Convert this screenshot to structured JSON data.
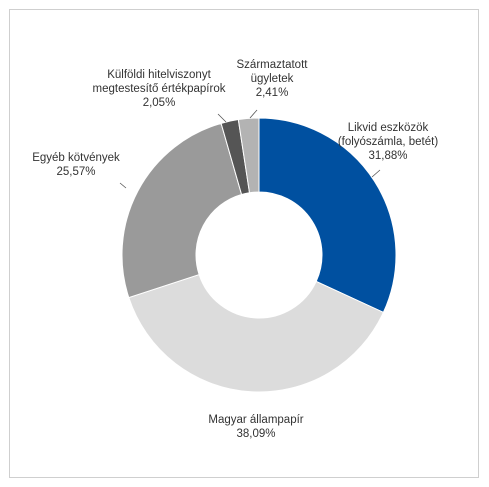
{
  "chart_data": {
    "type": "pie",
    "donut": true,
    "title": "",
    "slices": [
      {
        "lines": [
          "Likvid eszközök",
          "(folyószámla, betét)",
          "31,88%"
        ],
        "value": 31.88,
        "color": "#0050a0"
      },
      {
        "lines": [
          "Magyar állampapír",
          "38,09%"
        ],
        "value": 38.09,
        "color": "#dcdcdc"
      },
      {
        "lines": [
          "Egyéb kötvények",
          "25,57%"
        ],
        "value": 25.57,
        "color": "#9a9a9a"
      },
      {
        "lines": [
          "Külföldi hitelviszonyt",
          "megtestesítő értékpapírok",
          "2,05%"
        ],
        "value": 2.05,
        "color": "#555555"
      },
      {
        "lines": [
          "Származtatott",
          "ügyletek",
          "2,41%"
        ],
        "value": 2.41,
        "color": "#b3b3b3"
      }
    ]
  }
}
